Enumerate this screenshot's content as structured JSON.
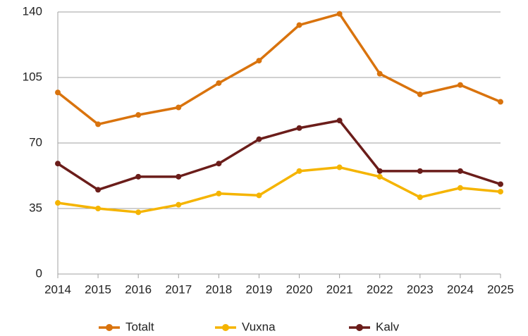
{
  "chart_data": {
    "type": "line",
    "x": [
      2014,
      2015,
      2016,
      2017,
      2018,
      2019,
      2020,
      2021,
      2022,
      2023,
      2024,
      2025
    ],
    "xlim": [
      2014,
      2025
    ],
    "xticks": [
      2014,
      2015,
      2016,
      2017,
      2018,
      2019,
      2020,
      2021,
      2022,
      2023,
      2024,
      2025
    ],
    "ylim": [
      0,
      140
    ],
    "yticks": [
      0,
      35,
      70,
      105,
      140
    ],
    "grid": true,
    "legend": "bottom",
    "series": [
      {
        "name": "Totalt",
        "color": "#d9730d",
        "values": [
          97,
          80,
          85,
          89,
          102,
          114,
          133,
          139,
          107,
          96,
          101,
          92
        ]
      },
      {
        "name": "Vuxna",
        "color": "#f5b400",
        "values": [
          38,
          35,
          33,
          37,
          43,
          42,
          55,
          57,
          52,
          41,
          46,
          44
        ]
      },
      {
        "name": "Kalv",
        "color": "#6b1d1a",
        "values": [
          59,
          45,
          52,
          52,
          59,
          72,
          78,
          82,
          55,
          55,
          55,
          48
        ]
      }
    ]
  }
}
